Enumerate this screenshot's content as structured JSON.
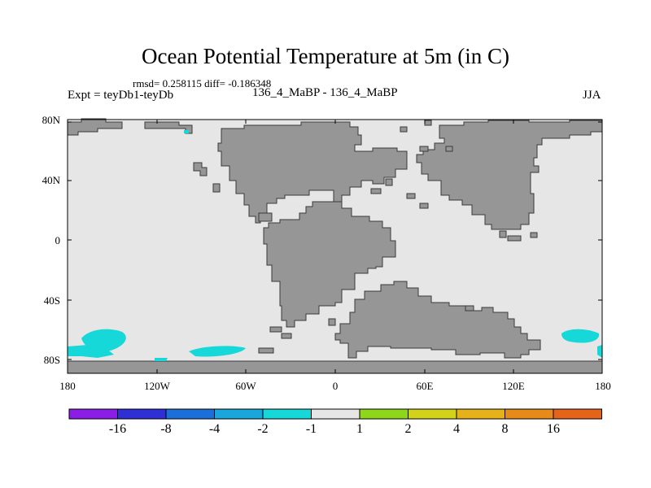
{
  "title": "Ocean Potential Temperature at 5m (in C)",
  "stats_line": "rmsd= 0.258115 diff= -0.186348",
  "left_string": "Expt = teyDb1-teyDb",
  "center_string": "136_4_MaBP - 136_4_MaBP",
  "right_string": "JJA",
  "lat_labels": [
    "80N",
    "40N",
    "0",
    "40S",
    "80S"
  ],
  "lon_labels": [
    "180",
    "120W",
    "60W",
    "0",
    "60E",
    "120E",
    "180"
  ],
  "colorbar": {
    "colors": [
      "#8a1ee6",
      "#2f2fd6",
      "#1a6fdb",
      "#18a6dd",
      "#17d8d8",
      "#e6e6e6",
      "#8ed61a",
      "#d2d21a",
      "#e6b21a",
      "#e68a1a",
      "#e6641a",
      "#e6281a"
    ],
    "labels": [
      "-16",
      "-8",
      "-4",
      "-2",
      "-1",
      "1",
      "2",
      "4",
      "8",
      "16"
    ]
  },
  "map_colors": {
    "ocean": "#e6e6e6",
    "land": "#969696",
    "anomaly": "#17d8d8"
  }
}
